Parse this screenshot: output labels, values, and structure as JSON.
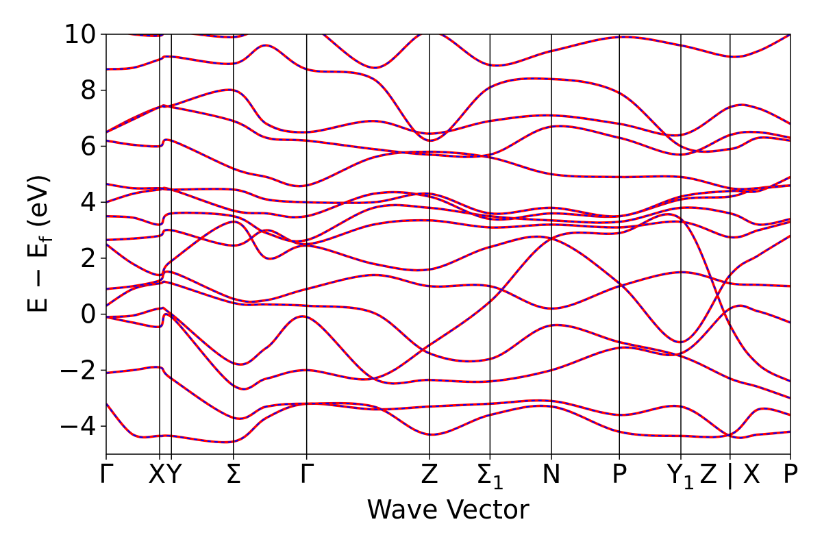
{
  "chart_data": {
    "type": "line",
    "xlabel": "Wave Vector",
    "ylabel": "E − E",
    "ylabel_sub": "f",
    "ylabel_unit": " (eV)",
    "ylim": [
      -5,
      10
    ],
    "yticks": [
      -4,
      -2,
      0,
      2,
      4,
      6,
      8,
      10
    ],
    "ytick_labels": [
      "−4",
      "−2",
      "0",
      "2",
      "4",
      "6",
      "8",
      "10"
    ],
    "xlim": [
      0,
      12.8
    ],
    "kpoints": [
      {
        "label": "Γ",
        "x": 0.0
      },
      {
        "label": "X",
        "x": 1.0
      },
      {
        "label": "Y",
        "x": 1.22
      },
      {
        "label": "Σ",
        "x": 2.38
      },
      {
        "label": "Γ",
        "x": 3.75
      },
      {
        "label": "Z",
        "x": 6.05
      },
      {
        "label": "Σ",
        "sub": "1",
        "x": 7.18
      },
      {
        "label": "N",
        "x": 8.33
      },
      {
        "label": "P",
        "x": 9.6
      },
      {
        "label": "Y",
        "sub": "1",
        "x": 10.75
      },
      {
        "label": "Z | X",
        "x": 11.67
      },
      {
        "label": "P",
        "x": 12.8
      }
    ],
    "grid": false,
    "legend": "none",
    "series_colors": {
      "dft": "#ff0000",
      "wannier": "#0000ff"
    },
    "bands": [
      {
        "x": [
          0,
          0.5,
          1.0,
          1.22,
          2.38,
          3.0,
          3.75,
          5.0,
          6.05,
          7.18,
          8.33,
          9.6,
          10.75,
          11.67,
          12.2,
          12.8
        ],
        "y": [
          -3.2,
          -4.3,
          -4.35,
          -4.35,
          -4.55,
          -3.7,
          -3.2,
          -3.4,
          -3.3,
          -3.2,
          -3.1,
          -3.6,
          -3.3,
          -4.35,
          -4.3,
          -4.2
        ]
      },
      {
        "x": [
          0,
          0.5,
          1.0,
          1.22,
          2.38,
          3.0,
          3.75,
          5.0,
          6.05,
          7.18,
          8.33,
          9.6,
          10.75,
          11.67,
          12.2,
          12.8
        ],
        "y": [
          -2.1,
          -2.0,
          -1.9,
          -2.3,
          -3.7,
          -3.3,
          -3.2,
          -3.3,
          -4.3,
          -3.6,
          -3.3,
          -4.2,
          -4.35,
          -4.3,
          -3.4,
          -3.6
        ]
      },
      {
        "x": [
          0,
          0.5,
          1.0,
          1.22,
          2.38,
          3.0,
          3.75,
          5.0,
          6.05,
          7.18,
          8.33,
          9.6,
          10.75,
          11.67,
          12.2,
          12.8
        ],
        "y": [
          -0.1,
          -0.3,
          -0.45,
          -0.1,
          -2.55,
          -2.3,
          -2.0,
          -2.3,
          -1.1,
          0.45,
          2.7,
          2.9,
          3.4,
          -0.4,
          -1.8,
          -2.4
        ]
      },
      {
        "x": [
          0,
          0.5,
          1.0,
          1.22,
          2.38,
          3.0,
          3.75,
          5.0,
          6.05,
          7.18,
          8.33,
          9.6,
          10.75,
          11.67,
          12.2,
          12.8
        ],
        "y": [
          -0.1,
          -0.05,
          0.2,
          0.0,
          -1.75,
          -1.2,
          -0.1,
          -2.3,
          -2.35,
          -2.4,
          -2.0,
          -1.2,
          -1.4,
          0.2,
          0.1,
          -0.3
        ]
      },
      {
        "x": [
          0,
          0.5,
          1.0,
          1.22,
          2.38,
          3.0,
          3.75,
          5.0,
          6.05,
          7.18,
          8.33,
          9.6,
          10.75,
          11.67,
          12.2,
          12.8
        ],
        "y": [
          0.3,
          0.9,
          1.1,
          1.1,
          0.4,
          0.35,
          0.3,
          0.05,
          -1.4,
          -1.6,
          -0.4,
          -1.0,
          -1.5,
          -2.3,
          -2.6,
          -3.0
        ]
      },
      {
        "x": [
          0,
          0.5,
          1.0,
          1.22,
          2.38,
          3.0,
          3.75,
          5.0,
          6.05,
          7.18,
          8.33,
          9.6,
          10.75,
          11.67,
          12.2,
          12.8
        ],
        "y": [
          0.9,
          1.0,
          1.2,
          1.5,
          0.55,
          0.5,
          0.9,
          1.4,
          1.0,
          1.0,
          0.2,
          1.0,
          1.5,
          1.1,
          1.05,
          1.0
        ]
      },
      {
        "x": [
          0,
          0.5,
          1.0,
          1.22,
          2.38,
          3.0,
          3.75,
          5.0,
          6.05,
          7.18,
          8.33,
          9.6,
          10.75,
          11.67,
          12.2,
          12.8
        ],
        "y": [
          2.5,
          1.8,
          1.4,
          1.9,
          3.3,
          2.0,
          2.45,
          1.8,
          1.6,
          2.4,
          2.7,
          1.1,
          -1.0,
          1.4,
          2.1,
          2.8
        ]
      },
      {
        "x": [
          0,
          0.5,
          1.0,
          1.22,
          2.38,
          3.0,
          3.75,
          5.0,
          6.05,
          7.18,
          8.33,
          9.6,
          10.75,
          11.67,
          12.2,
          12.8
        ],
        "y": [
          2.65,
          2.7,
          2.8,
          3.0,
          2.45,
          3.0,
          2.5,
          3.2,
          3.35,
          3.1,
          3.2,
          3.1,
          3.3,
          2.75,
          3.0,
          3.3
        ]
      },
      {
        "x": [
          0,
          0.5,
          1.0,
          1.22,
          2.38,
          3.0,
          3.75,
          5.0,
          6.05,
          7.18,
          8.33,
          9.6,
          10.75,
          11.67,
          12.2,
          12.8
        ],
        "y": [
          3.5,
          3.45,
          3.2,
          3.6,
          3.5,
          2.9,
          2.65,
          3.8,
          3.8,
          3.5,
          3.35,
          3.3,
          3.8,
          3.6,
          3.2,
          3.4
        ]
      },
      {
        "x": [
          0,
          0.5,
          1.0,
          1.22,
          2.38,
          3.0,
          3.75,
          5.0,
          6.05,
          7.18,
          8.33,
          9.6,
          10.75,
          11.67,
          12.2,
          12.8
        ],
        "y": [
          4.0,
          4.3,
          4.45,
          4.45,
          3.7,
          3.6,
          3.5,
          4.3,
          4.2,
          3.4,
          3.6,
          3.5,
          4.1,
          4.2,
          4.5,
          4.6
        ]
      },
      {
        "x": [
          0,
          0.5,
          1.0,
          1.22,
          2.38,
          3.0,
          3.75,
          5.0,
          6.05,
          7.18,
          8.33,
          9.6,
          10.75,
          11.67,
          12.2,
          12.8
        ],
        "y": [
          4.65,
          4.5,
          4.5,
          4.45,
          4.45,
          4.1,
          4.0,
          4.0,
          4.3,
          3.6,
          3.8,
          3.5,
          4.2,
          4.4,
          4.4,
          4.9
        ]
      },
      {
        "x": [
          0,
          0.5,
          1.0,
          1.22,
          2.38,
          3.0,
          3.75,
          5.0,
          6.05,
          7.18,
          8.33,
          9.6,
          10.75,
          11.67,
          12.2,
          12.8
        ],
        "y": [
          6.2,
          6.05,
          6.0,
          6.2,
          5.2,
          4.9,
          4.6,
          5.6,
          5.8,
          5.6,
          5.0,
          4.9,
          4.9,
          4.5,
          4.5,
          4.6
        ]
      },
      {
        "x": [
          0,
          0.5,
          1.0,
          1.22,
          2.38,
          3.0,
          3.75,
          5.0,
          6.05,
          7.18,
          8.33,
          9.6,
          10.75,
          11.67,
          12.2,
          12.8
        ],
        "y": [
          6.5,
          7.0,
          7.4,
          7.4,
          6.9,
          6.3,
          6.2,
          5.9,
          5.7,
          5.7,
          6.7,
          6.3,
          5.7,
          6.4,
          6.5,
          6.3
        ]
      },
      {
        "x": [
          0,
          0.5,
          1.0,
          1.22,
          2.38,
          3.0,
          3.75,
          5.0,
          6.05,
          7.18,
          8.33,
          9.6,
          10.75,
          11.67,
          12.2,
          12.8
        ],
        "y": [
          6.5,
          6.95,
          7.4,
          7.45,
          8.0,
          6.8,
          6.5,
          6.9,
          6.45,
          6.9,
          7.1,
          6.8,
          6.4,
          7.4,
          7.35,
          6.8
        ]
      },
      {
        "x": [
          0,
          0.5,
          1.0,
          1.22,
          2.38,
          3.0,
          3.75,
          5.0,
          6.05,
          7.18,
          8.33,
          9.6,
          10.75,
          11.67,
          12.2,
          12.8
        ],
        "y": [
          8.75,
          8.8,
          9.1,
          9.2,
          8.95,
          9.6,
          8.75,
          8.4,
          6.2,
          8.1,
          8.4,
          7.9,
          6.0,
          5.9,
          6.3,
          6.2
        ]
      },
      {
        "x": [
          0,
          0.5,
          1.0,
          1.22,
          2.38,
          3.0,
          3.75,
          5.0,
          6.05,
          7.18,
          8.33,
          9.6,
          10.75,
          11.67,
          12.2,
          12.8
        ],
        "y": [
          10.2,
          10.0,
          9.95,
          10.1,
          9.9,
          10.3,
          10.4,
          8.8,
          10.1,
          8.9,
          9.4,
          9.9,
          9.6,
          9.2,
          9.4,
          10.0
        ]
      }
    ]
  }
}
